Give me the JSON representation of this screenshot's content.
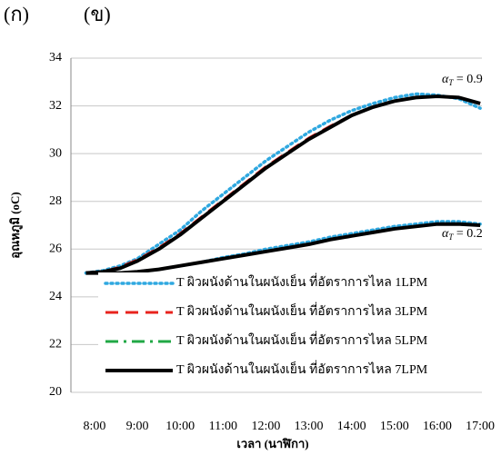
{
  "panel_labels": [
    "(ก)",
    "(ข)"
  ],
  "chart_data": {
    "type": "line",
    "x_label": "เวลา (นาฬิกา)",
    "y_label": "อุณหภูมิ (oC)",
    "x": [
      7.8,
      8.2,
      8.6,
      9,
      9.5,
      10,
      10.5,
      11,
      11.5,
      12,
      12.5,
      13,
      13.5,
      14,
      14.5,
      15,
      15.5,
      16,
      16.5,
      17
    ],
    "xlim": [
      7.45,
      17.04
    ],
    "xticks": [
      {
        "value": 8,
        "label": "8:00"
      },
      {
        "value": 9,
        "label": "9:00"
      },
      {
        "value": 10,
        "label": "10:00"
      },
      {
        "value": 11,
        "label": "11:00"
      },
      {
        "value": 12,
        "label": "12:00"
      },
      {
        "value": 13,
        "label": "13:00"
      },
      {
        "value": 14,
        "label": "14:00"
      },
      {
        "value": 15,
        "label": "15:00"
      },
      {
        "value": 16,
        "label": "16:00"
      },
      {
        "value": 17,
        "label": "17:00"
      }
    ],
    "ylim": [
      20,
      34
    ],
    "yticks": [
      20,
      22,
      24,
      26,
      28,
      30,
      32,
      34
    ],
    "grid": true,
    "series": [
      {
        "name": "T ผิวผนังด้านในผนังเย็น ที่อัตราการไหล 1LPM",
        "color": "#2fa8e0",
        "style": "dotted",
        "curves": [
          [
            25,
            25.1,
            25.3,
            25.6,
            26.2,
            26.8,
            27.6,
            28.3,
            29.0,
            29.7,
            30.3,
            30.9,
            31.4,
            31.8,
            32.1,
            32.35,
            32.5,
            32.45,
            32.3,
            31.9
          ],
          [
            25,
            25.0,
            25.0,
            25.05,
            25.15,
            25.3,
            25.45,
            25.65,
            25.8,
            26.0,
            26.15,
            26.3,
            26.5,
            26.65,
            26.8,
            26.95,
            27.05,
            27.15,
            27.15,
            27.05
          ]
        ]
      },
      {
        "name": "T ผิวผนังด้านในผนังเย็น ที่อัตราการไหล 3LPM",
        "color": "#e8231d",
        "style": "dashed",
        "curves": [
          [
            25,
            25.05,
            25.25,
            25.55,
            26.05,
            26.65,
            27.35,
            28.05,
            28.75,
            29.45,
            30.05,
            30.65,
            31.15,
            31.6,
            31.95,
            32.2,
            32.35,
            32.4,
            32.35,
            32.1
          ],
          [
            25,
            25.0,
            25.0,
            25.05,
            25.15,
            25.3,
            25.45,
            25.6,
            25.75,
            25.9,
            26.05,
            26.2,
            26.4,
            26.55,
            26.7,
            26.85,
            26.95,
            27.05,
            27.05,
            27.0
          ]
        ]
      },
      {
        "name": "T ผิวผนังด้านในผนังเย็น ที่อัตราการไหล 5LPM",
        "color": "#21a845",
        "style": "dashdot",
        "curves": [
          [
            25,
            25.05,
            25.2,
            25.5,
            26.0,
            26.6,
            27.3,
            28.0,
            28.7,
            29.4,
            30.0,
            30.6,
            31.1,
            31.6,
            31.95,
            32.2,
            32.35,
            32.4,
            32.35,
            32.1
          ],
          [
            25,
            25.0,
            25.0,
            25.05,
            25.15,
            25.3,
            25.45,
            25.6,
            25.75,
            25.9,
            26.05,
            26.2,
            26.4,
            26.55,
            26.7,
            26.85,
            26.95,
            27.05,
            27.05,
            27.0
          ]
        ]
      },
      {
        "name": "T ผิวผนังด้านในผนังเย็น ที่อัตราการไหล 7LPM",
        "color": "#000000",
        "style": "solid",
        "curves": [
          [
            25,
            25.05,
            25.2,
            25.5,
            26.0,
            26.6,
            27.3,
            28.0,
            28.7,
            29.4,
            30.0,
            30.6,
            31.1,
            31.6,
            31.95,
            32.2,
            32.35,
            32.4,
            32.35,
            32.1
          ],
          [
            25,
            25.0,
            25.0,
            25.05,
            25.15,
            25.3,
            25.45,
            25.6,
            25.75,
            25.9,
            26.05,
            26.2,
            26.4,
            26.55,
            26.7,
            26.85,
            26.95,
            27.05,
            27.05,
            27.0
          ]
        ]
      }
    ],
    "annotations": [
      {
        "symbol": "α",
        "subscript": "T",
        "text": " = 0.9"
      },
      {
        "symbol": "α",
        "subscript": "T",
        "text": " = 0.2"
      }
    ]
  }
}
